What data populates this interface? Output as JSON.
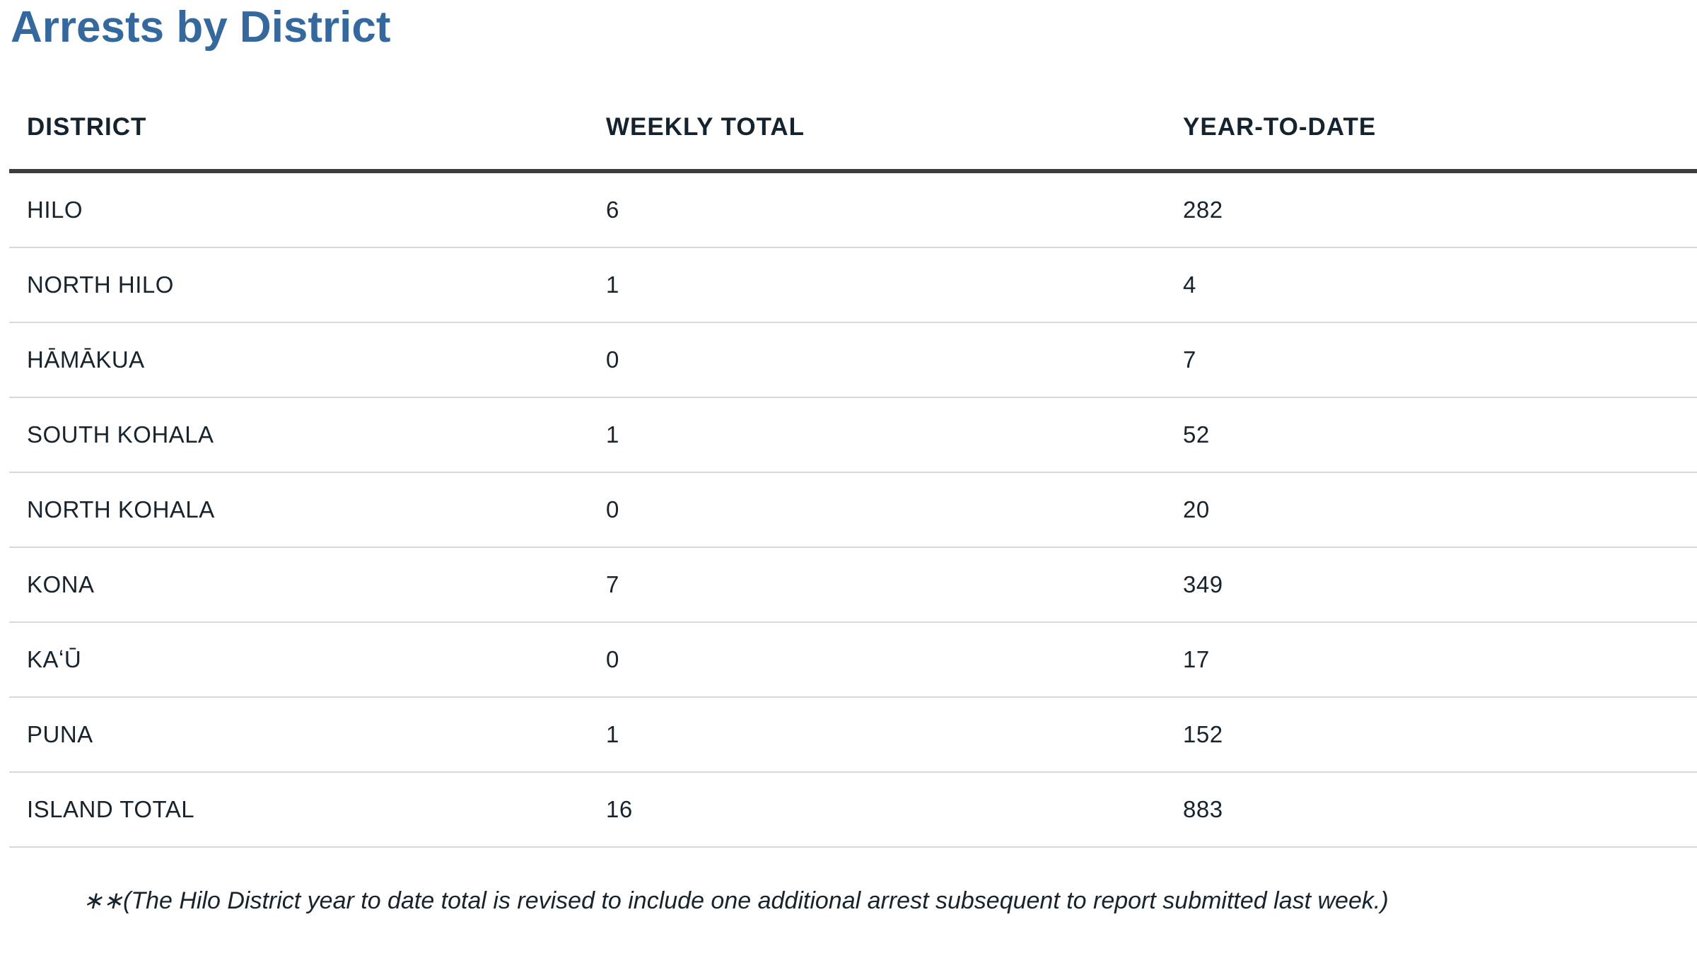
{
  "page": {
    "title": "Arrests by District"
  },
  "table": {
    "columns": [
      "DISTRICT",
      "WEEKLY TOTAL",
      "YEAR-TO-DATE"
    ],
    "rows": [
      {
        "district": "HILO",
        "weekly_total": "6",
        "year_to_date": "282"
      },
      {
        "district": "NORTH HILO",
        "weekly_total": "1",
        "year_to_date": "4"
      },
      {
        "district": "HĀMĀKUA",
        "weekly_total": "0",
        "year_to_date": "7"
      },
      {
        "district": "SOUTH KOHALA",
        "weekly_total": "1",
        "year_to_date": "52"
      },
      {
        "district": "NORTH KOHALA",
        "weekly_total": "0",
        "year_to_date": "20"
      },
      {
        "district": "KONA",
        "weekly_total": "7",
        "year_to_date": "349"
      },
      {
        "district": "KAʻŪ",
        "weekly_total": "0",
        "year_to_date": "17"
      },
      {
        "district": "PUNA",
        "weekly_total": "1",
        "year_to_date": "152"
      },
      {
        "district": "ISLAND TOTAL",
        "weekly_total": "16",
        "year_to_date": "883"
      }
    ]
  },
  "footnote": {
    "text": "∗∗(The Hilo District year to date total is revised to include one additional arrest subsequent to report submitted  last week.)"
  },
  "colors": {
    "title_blue": "#35699e",
    "body_text": "#17242e",
    "header_rule": "#3d3d3f",
    "row_rule": "#d9d9d9"
  },
  "chart_data": {
    "type": "table",
    "title": "Arrests by District",
    "columns": [
      "DISTRICT",
      "WEEKLY TOTAL",
      "YEAR-TO-DATE"
    ],
    "rows": [
      [
        "HILO",
        6,
        282
      ],
      [
        "NORTH HILO",
        1,
        4
      ],
      [
        "HĀMĀKUA",
        0,
        7
      ],
      [
        "SOUTH KOHALA",
        1,
        52
      ],
      [
        "NORTH KOHALA",
        0,
        20
      ],
      [
        "KONA",
        7,
        349
      ],
      [
        "KAʻŪ",
        0,
        17
      ],
      [
        "PUNA",
        1,
        152
      ],
      [
        "ISLAND TOTAL",
        16,
        883
      ]
    ]
  }
}
